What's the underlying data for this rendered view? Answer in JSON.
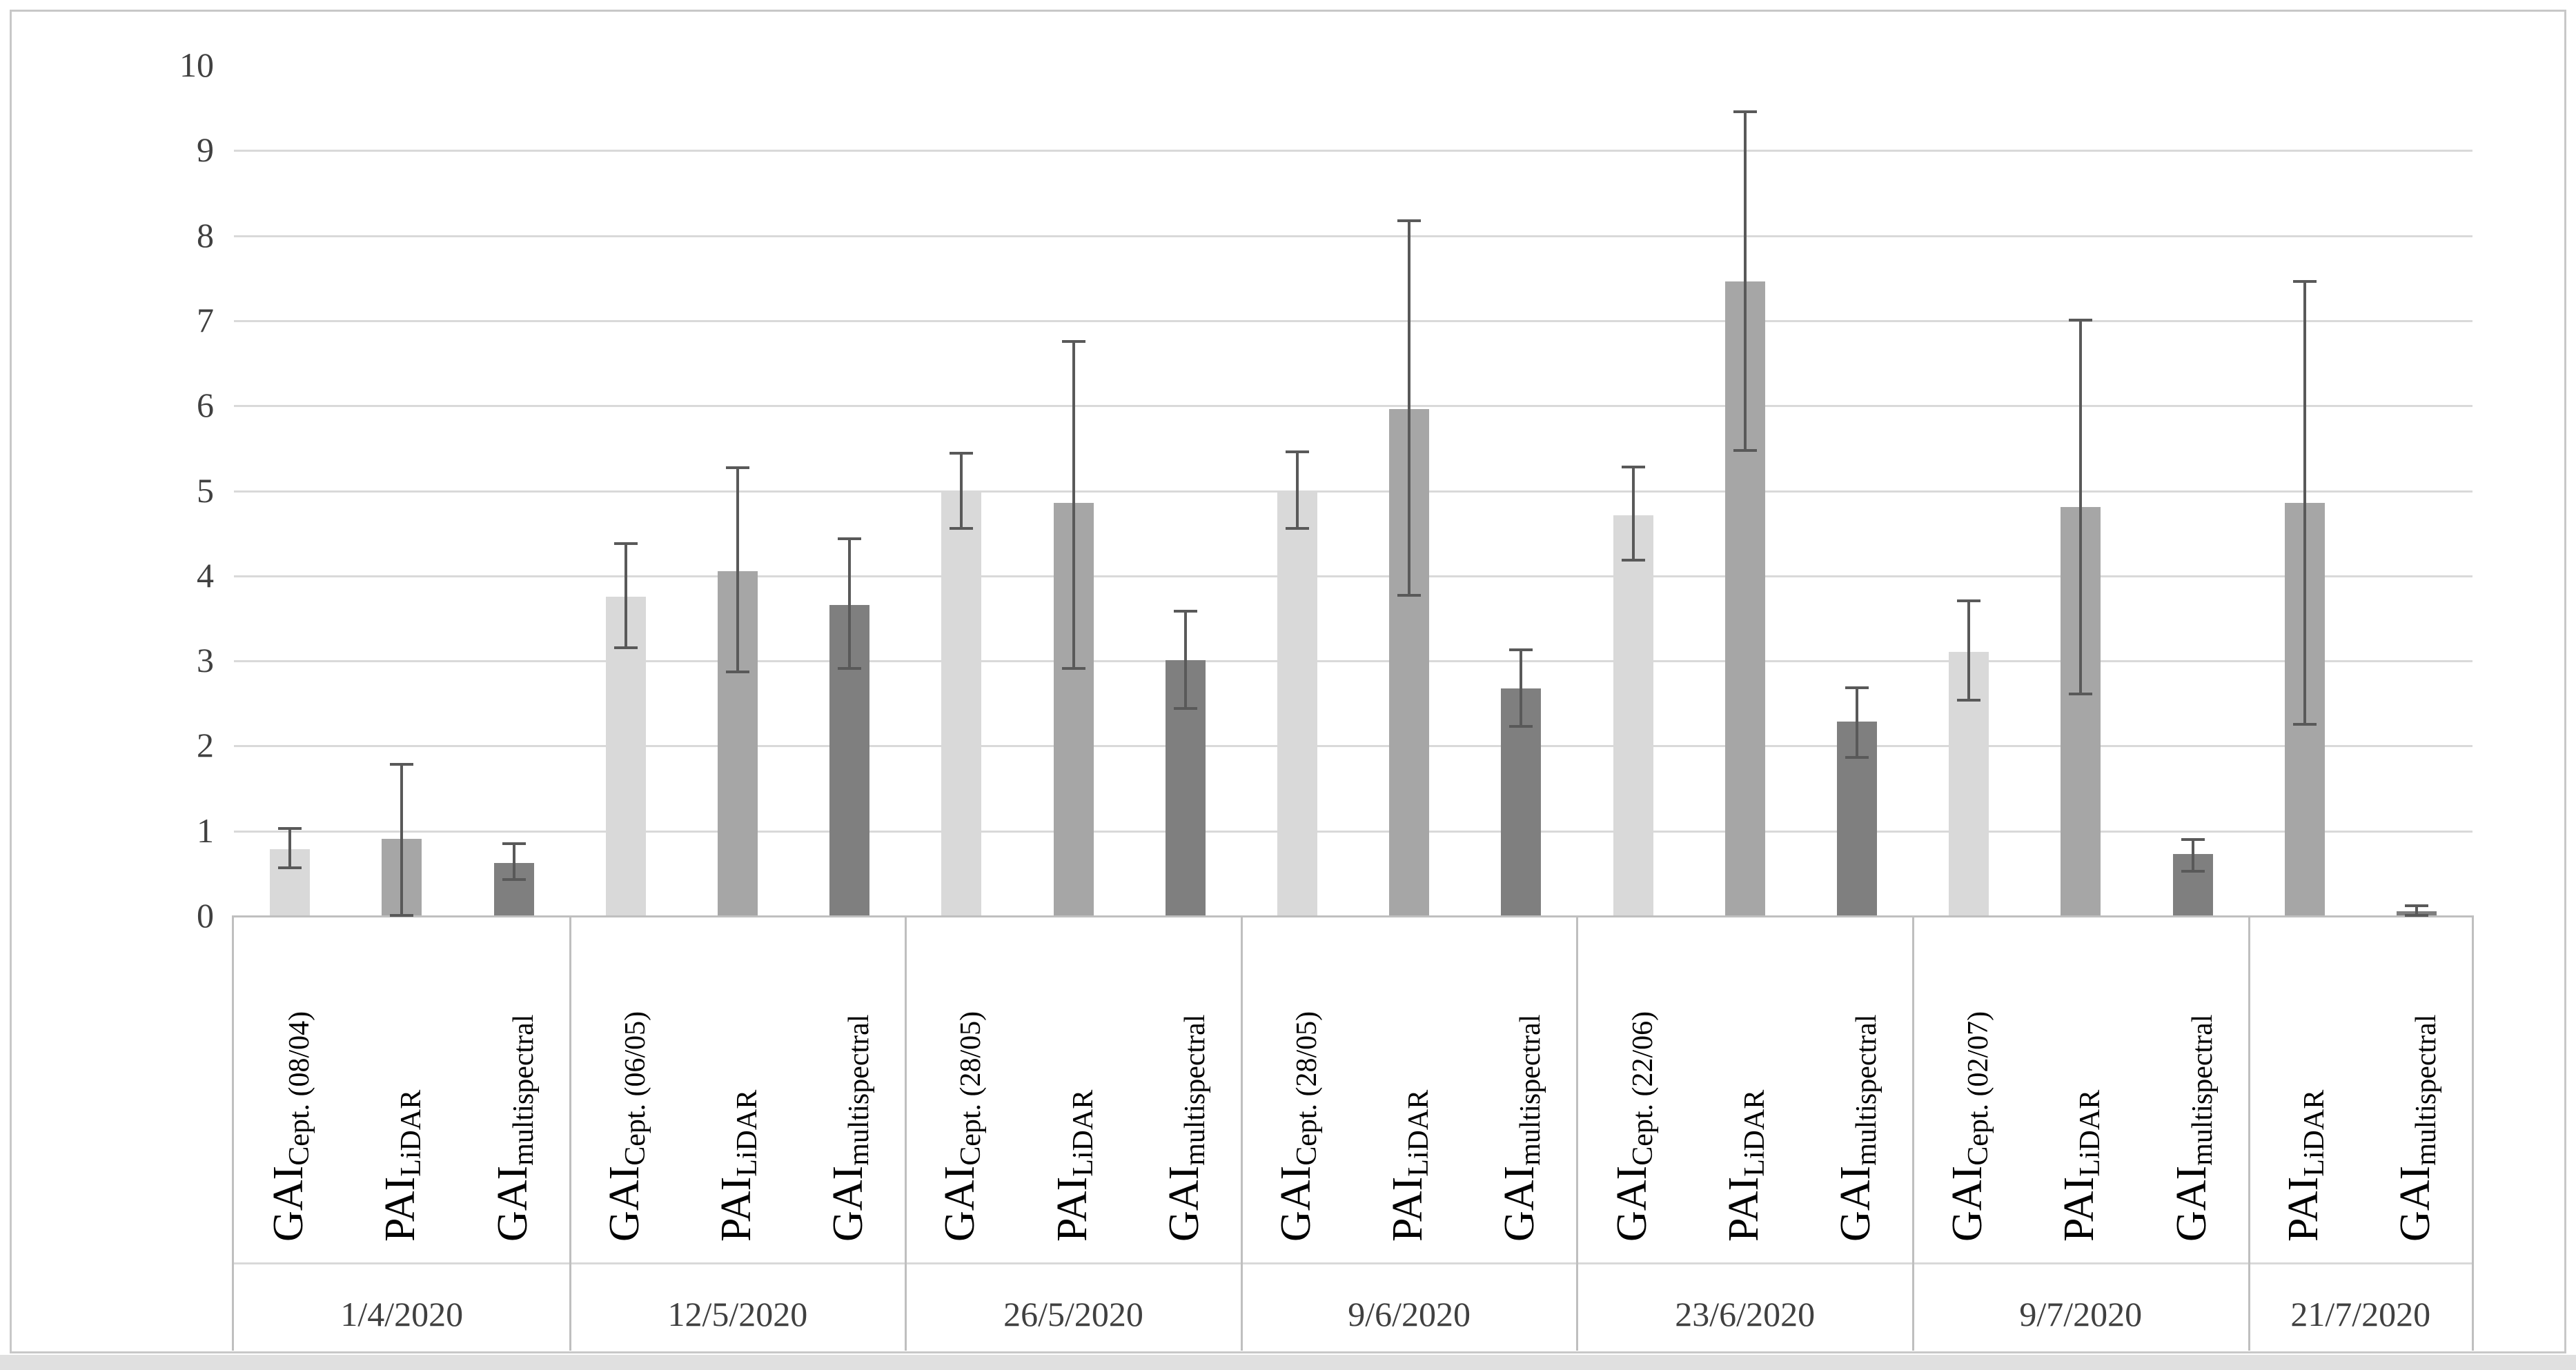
{
  "figure": {
    "background": "#ffffff",
    "border_color": "#c8c8c8",
    "bottom_strip_color": "#e0e0e0"
  },
  "chart_data": {
    "type": "bar",
    "title": "",
    "xlabel": "",
    "ylabel": "",
    "ylim": [
      0,
      10
    ],
    "ytick_labels": [
      "0",
      "1",
      "2",
      "3",
      "4",
      "5",
      "6",
      "7",
      "8",
      "9",
      "10"
    ],
    "grid": "horizontal gridlines at 1-9, light gray",
    "legend": "none",
    "error_bars": true,
    "colors": {
      "cept": "#d9d9d9",
      "lidar": "#a6a6a6",
      "multispectral": "#7f7f7f",
      "error_bar": "#595959",
      "gridline": "#d9d9d9",
      "axis_line": "#bfbfbf",
      "separator": "#bfbfbf",
      "tick_text": "#404040",
      "category_text": "#000000"
    },
    "groups": [
      {
        "date": "1/4/2020",
        "bars": [
          {
            "label_main": "GAI",
            "label_sub": "Cept. (08/04)",
            "series": "cept",
            "value": 0.78,
            "err_up": 0.24,
            "err_down": 0.22
          },
          {
            "label_main": "PAI",
            "label_sub": "LiDAR",
            "series": "lidar",
            "value": 0.9,
            "err_up": 0.88,
            "err_down": 0.9
          },
          {
            "label_main": "GAI",
            "label_sub": "multispectral",
            "series": "multispectral",
            "value": 0.62,
            "err_up": 0.22,
            "err_down": 0.2
          }
        ]
      },
      {
        "date": "12/5/2020",
        "bars": [
          {
            "label_main": "GAI",
            "label_sub": "Cept. (06/05)",
            "series": "cept",
            "value": 3.75,
            "err_up": 0.62,
            "err_down": 0.6
          },
          {
            "label_main": "PAI",
            "label_sub": "LiDAR",
            "series": "lidar",
            "value": 4.05,
            "err_up": 1.21,
            "err_down": 1.19
          },
          {
            "label_main": "GAI",
            "label_sub": "multispectral",
            "series": "multispectral",
            "value": 3.65,
            "err_up": 0.78,
            "err_down": 0.75
          }
        ]
      },
      {
        "date": "26/5/2020",
        "bars": [
          {
            "label_main": "GAI",
            "label_sub": "Cept. (28/05)",
            "series": "cept",
            "value": 5.0,
            "err_up": 0.43,
            "err_down": 0.45
          },
          {
            "label_main": "PAI",
            "label_sub": "LiDAR",
            "series": "lidar",
            "value": 4.85,
            "err_up": 1.9,
            "err_down": 1.95
          },
          {
            "label_main": "GAI",
            "label_sub": "multispectral",
            "series": "multispectral",
            "value": 3.0,
            "err_up": 0.58,
            "err_down": 0.57
          }
        ]
      },
      {
        "date": "9/6/2020",
        "bars": [
          {
            "label_main": "GAI",
            "label_sub": "Cept. (28/05)",
            "series": "cept",
            "value": 5.0,
            "err_up": 0.45,
            "err_down": 0.45
          },
          {
            "label_main": "PAI",
            "label_sub": "LiDAR",
            "series": "lidar",
            "value": 5.95,
            "err_up": 2.22,
            "err_down": 2.19
          },
          {
            "label_main": "GAI",
            "label_sub": "multispectral",
            "series": "multispectral",
            "value": 2.67,
            "err_up": 0.45,
            "err_down": 0.45
          }
        ]
      },
      {
        "date": "23/6/2020",
        "bars": [
          {
            "label_main": "GAI",
            "label_sub": "Cept. (22/06)",
            "series": "cept",
            "value": 4.7,
            "err_up": 0.57,
            "err_down": 0.52
          },
          {
            "label_main": "PAI",
            "label_sub": "LiDAR",
            "series": "lidar",
            "value": 7.45,
            "err_up": 2.0,
            "err_down": 1.98
          },
          {
            "label_main": "GAI",
            "label_sub": "multispectral",
            "series": "multispectral",
            "value": 2.28,
            "err_up": 0.4,
            "err_down": 0.42
          }
        ]
      },
      {
        "date": "9/7/2020",
        "bars": [
          {
            "label_main": "GAI",
            "label_sub": "Cept. (02/07)",
            "series": "cept",
            "value": 3.1,
            "err_up": 0.6,
            "err_down": 0.57
          },
          {
            "label_main": "PAI",
            "label_sub": "LiDAR",
            "series": "lidar",
            "value": 4.8,
            "err_up": 2.2,
            "err_down": 2.2
          },
          {
            "label_main": "GAI",
            "label_sub": "multispectral",
            "series": "multispectral",
            "value": 0.72,
            "err_up": 0.17,
            "err_down": 0.2
          }
        ]
      },
      {
        "date": "21/7/2020",
        "bars": [
          {
            "label_main": "PAI",
            "label_sub": "LiDAR",
            "series": "lidar",
            "value": 4.85,
            "err_up": 2.6,
            "err_down": 2.6
          },
          {
            "label_main": "GAI",
            "label_sub": "multispectral",
            "series": "multispectral",
            "value": 0.05,
            "err_up": 0.06,
            "err_down": 0.05
          }
        ]
      }
    ]
  }
}
